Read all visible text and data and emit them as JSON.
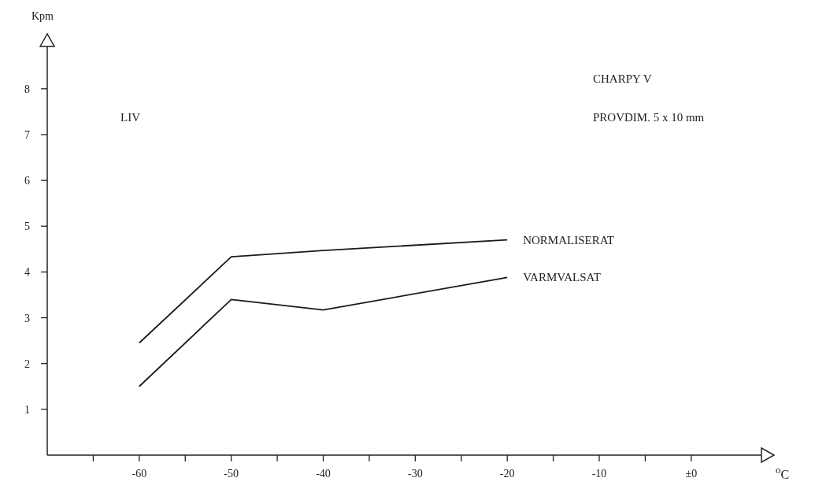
{
  "chart_data": {
    "type": "line",
    "ylabel": "Kpm",
    "xlabel": "$^{o}$C",
    "annotations": [
      "LIV",
      "CHARPY V",
      "PROVDIM. 5 x 10 mm"
    ],
    "x": [
      -60,
      -50,
      -40,
      -20
    ],
    "series": [
      {
        "name": "NORMALISERAT",
        "color": "#1a1a1a",
        "values": [
          2.45,
          4.33,
          4.47,
          4.7
        ]
      },
      {
        "name": "VARMVALSAT",
        "color": "#1a1a1a",
        "values": [
          1.5,
          3.4,
          3.17,
          3.88
        ]
      }
    ],
    "xlim": [
      -70,
      9
    ],
    "ylim": [
      0,
      9.2
    ],
    "xticks": [
      {
        "value": -65,
        "label": null
      },
      -60,
      {
        "value": -55,
        "label": null
      },
      -50,
      {
        "value": -45,
        "label": null
      },
      -40,
      {
        "value": -35,
        "label": null
      },
      -30,
      {
        "value": -25,
        "label": null
      },
      -20,
      {
        "value": -15,
        "label": null
      },
      -10,
      {
        "value": -5,
        "label": null
      },
      {
        "value": 0,
        "label": "±0"
      }
    ],
    "yticks": [
      1,
      2,
      3,
      4,
      5,
      6,
      7,
      8
    ],
    "grid": false,
    "legend": false,
    "marker": "none",
    "line_style": "solid"
  }
}
